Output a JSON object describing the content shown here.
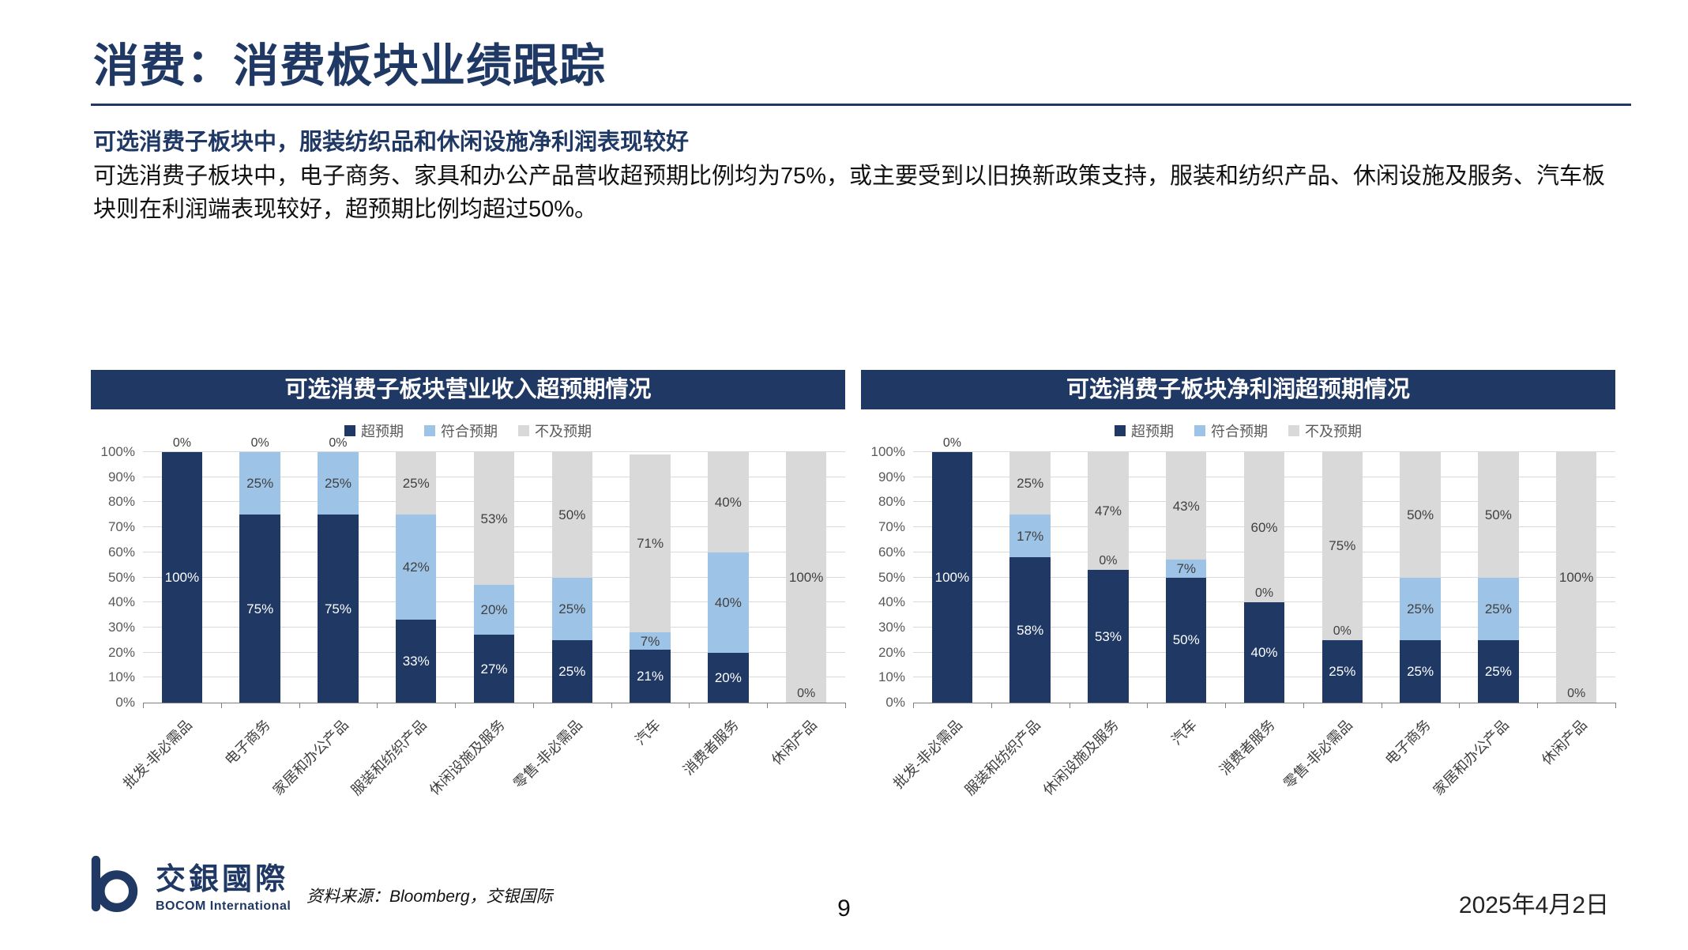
{
  "page": {
    "title": "消费：消费板块业绩跟踪",
    "subtitle": "可选消费子板块中，服装纺织品和休闲设施净利润表现较好",
    "body": "可选消费子板块中，电子商务、家具和办公产品营收超预期比例均为75%，或主要受到以旧换新政策支持，服装和纺织产品、休闲设施及服务、汽车板块则在利润端表现较好，超预期比例均超过50%。",
    "source": "资料来源：Bloomberg，交银国际",
    "page_number": "9",
    "date": "2025年4月2日"
  },
  "logo": {
    "cn": "交銀國際",
    "en": "BOCOM International"
  },
  "colors": {
    "beat": "#1F3864",
    "meet": "#9DC3E6",
    "miss": "#D9D9D9",
    "accent": "#1F3864"
  },
  "chart_data": [
    {
      "type": "bar",
      "stacked": true,
      "title": "可选消费子板块营业收入超预期情况",
      "legend_position": "top",
      "grid": true,
      "ylim": [
        0,
        100
      ],
      "ytick_step": 10,
      "categories": [
        "批发-非必需品",
        "电子商务",
        "家居和办公产品",
        "服装和纺织产品",
        "休闲设施及服务",
        "零售-非必需品",
        "汽车",
        "消费者服务",
        "休闲产品"
      ],
      "series": [
        {
          "key": "beat",
          "name": "超预期",
          "values": [
            100,
            75,
            75,
            33,
            27,
            25,
            21,
            20,
            0
          ]
        },
        {
          "key": "meet",
          "name": "符合预期",
          "values": [
            0,
            25,
            25,
            42,
            20,
            25,
            7,
            40,
            0
          ]
        },
        {
          "key": "miss",
          "name": "不及预期",
          "values": [
            0,
            0,
            0,
            25,
            53,
            50,
            71,
            40,
            100
          ]
        }
      ]
    },
    {
      "type": "bar",
      "stacked": true,
      "title": "可选消费子板块净利润超预期情况",
      "legend_position": "top",
      "grid": true,
      "ylim": [
        0,
        100
      ],
      "ytick_step": 10,
      "categories": [
        "批发-非必需品",
        "服装和纺织产品",
        "休闲设施及服务",
        "汽车",
        "消费者服务",
        "零售-非必需品",
        "电子商务",
        "家居和办公产品",
        "休闲产品"
      ],
      "series": [
        {
          "key": "beat",
          "name": "超预期",
          "values": [
            100,
            58,
            53,
            50,
            40,
            25,
            25,
            25,
            0
          ]
        },
        {
          "key": "meet",
          "name": "符合预期",
          "values": [
            0,
            17,
            0,
            7,
            0,
            0,
            25,
            25,
            0
          ]
        },
        {
          "key": "miss",
          "name": "不及预期",
          "values": [
            0,
            25,
            47,
            43,
            60,
            75,
            50,
            50,
            100
          ]
        }
      ]
    }
  ]
}
